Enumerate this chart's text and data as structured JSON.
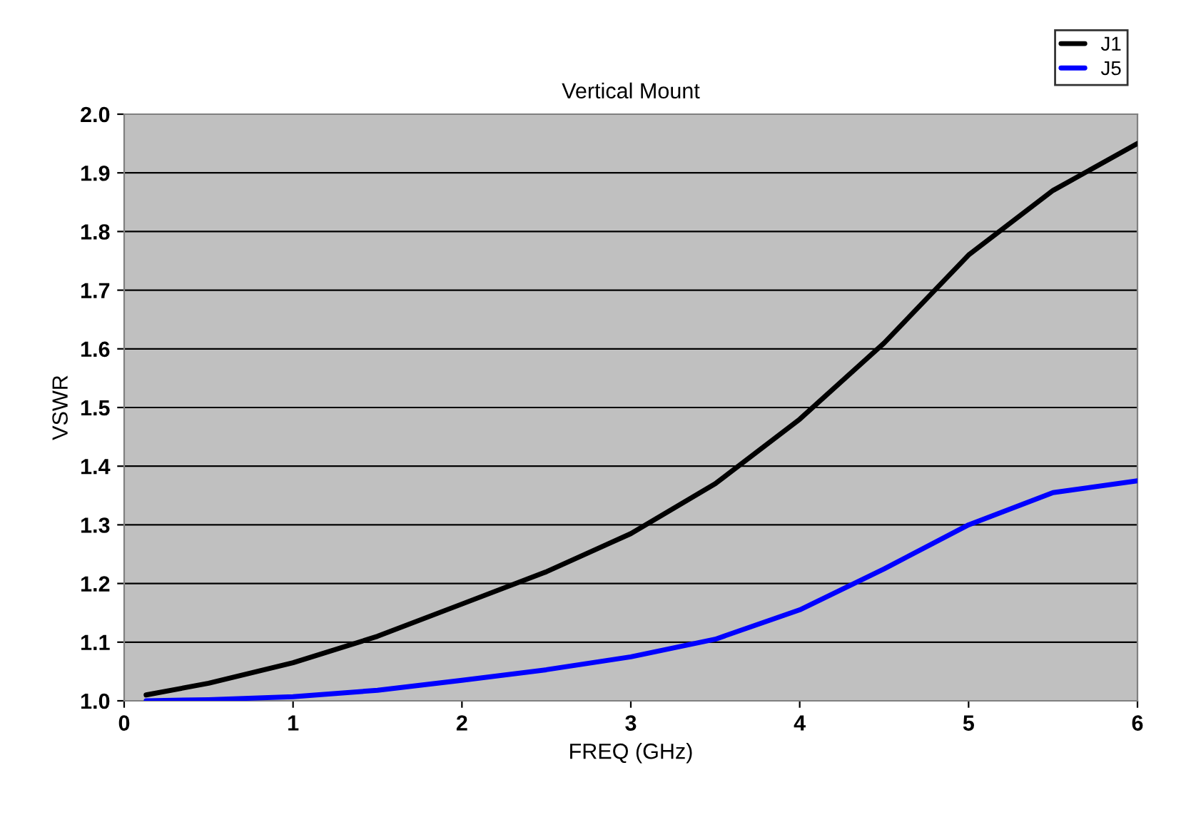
{
  "chart_data": {
    "type": "line",
    "title": "Vertical Mount",
    "xlabel": "FREQ (GHz)",
    "ylabel": "VSWR",
    "x": [
      0.13,
      0.5,
      1,
      1.5,
      2,
      2.5,
      3,
      3.5,
      4,
      4.5,
      5,
      5.5,
      6
    ],
    "series": [
      {
        "name": "J1",
        "color": "#000000",
        "values": [
          1.01,
          1.03,
          1.065,
          1.11,
          1.165,
          1.22,
          1.285,
          1.37,
          1.48,
          1.61,
          1.76,
          1.87,
          1.95
        ]
      },
      {
        "name": "J5",
        "color": "#0000ff",
        "values": [
          1.0,
          1.002,
          1.007,
          1.018,
          1.035,
          1.053,
          1.075,
          1.105,
          1.155,
          1.225,
          1.3,
          1.355,
          1.375
        ]
      }
    ],
    "xlim": [
      0,
      6
    ],
    "xticks": [
      0,
      1,
      2,
      3,
      4,
      5,
      6
    ],
    "ylim": [
      1.0,
      2.0
    ],
    "yticks": [
      {
        "value": 1.0,
        "label": "1.0"
      },
      1.1,
      1.2,
      1.3,
      1.4,
      1.5,
      1.6,
      1.7,
      1.8,
      1.9,
      {
        "value": 2.0,
        "label": "2.0"
      }
    ],
    "grid": "y",
    "legend": "top right",
    "marker": "none",
    "line_style": "solid"
  }
}
